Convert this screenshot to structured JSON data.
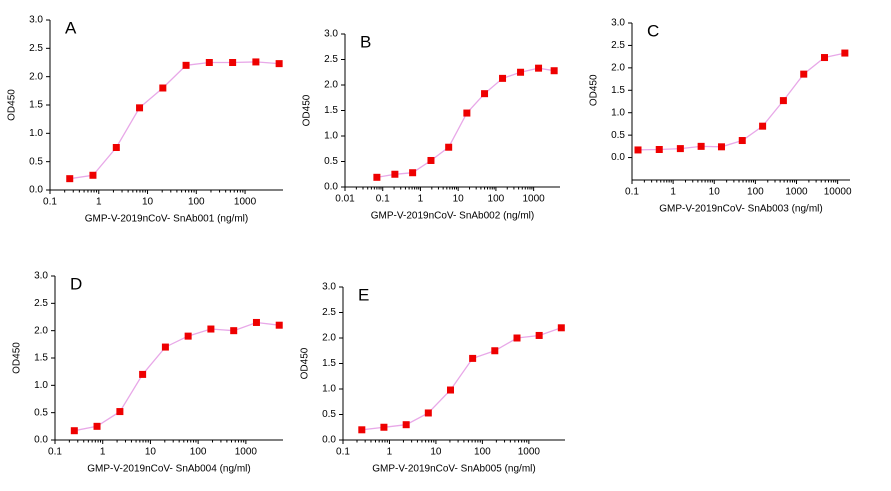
{
  "chart_data": [
    {
      "type": "line",
      "title": "A",
      "x_label": "GMP-V-2019nCoV- SnAb001 (ng/ml)",
      "y_label": "OD450",
      "log_x": true,
      "color": "#ee0000",
      "line_color": "#e8a8e8",
      "x": [
        0.254,
        0.76,
        2.29,
        6.86,
        20.6,
        61.7,
        185,
        556,
        1667,
        5000
      ],
      "values": [
        0.2,
        0.26,
        0.75,
        1.45,
        1.8,
        2.2,
        2.25,
        2.25,
        2.26,
        2.23
      ],
      "xlim": [
        0.1,
        6000
      ],
      "xticks": [
        0.1,
        1,
        10,
        100,
        1000
      ],
      "ylim": [
        0,
        3
      ],
      "yticks": [
        {
          "value": 0,
          "label": "0.0"
        },
        0.5,
        {
          "value": 1,
          "label": "1.0"
        },
        1.5,
        {
          "value": 2,
          "label": "2.0"
        },
        2.5,
        {
          "value": 3,
          "label": "3.0"
        }
      ]
    },
    {
      "type": "line",
      "title": "B",
      "x_label": "GMP-V-2019nCoV- SnAb002 (ng/ml)",
      "y_label": "OD450",
      "log_x": true,
      "color": "#ee0000",
      "line_color": "#e8a8e8",
      "x": [
        0.07,
        0.21,
        0.62,
        1.9,
        5.6,
        17,
        50,
        150,
        450,
        1350,
        3500
      ],
      "values": [
        0.19,
        0.25,
        0.28,
        0.52,
        0.78,
        1.45,
        1.83,
        2.13,
        2.25,
        2.33,
        2.28
      ],
      "xlim": [
        0.01,
        5000
      ],
      "xticks": [
        0.01,
        0.1,
        1,
        10,
        100,
        1000
      ],
      "ylim": [
        0,
        3
      ],
      "yticks": [
        {
          "value": 0,
          "label": "0.0"
        },
        0.5,
        {
          "value": 1,
          "label": "1.0"
        },
        1.5,
        {
          "value": 2,
          "label": "2.0"
        },
        2.5,
        {
          "value": 3,
          "label": "3.0"
        }
      ]
    },
    {
      "type": "line",
      "title": "C",
      "x_label": "GMP-V-2019nCoV- SnAb003 (ng/ml)",
      "y_label": "OD450",
      "log_x": true,
      "color": "#ee0000",
      "line_color": "#e8a8e8",
      "x": [
        0.14,
        0.46,
        1.5,
        4.8,
        15,
        48,
        150,
        480,
        1500,
        4800,
        15000
      ],
      "values": [
        0.17,
        0.18,
        0.2,
        0.25,
        0.24,
        0.38,
        0.7,
        1.27,
        1.86,
        2.23,
        2.33
      ],
      "xlim": [
        0.1,
        20000
      ],
      "xticks": [
        0.1,
        1,
        10,
        100,
        1000,
        10000
      ],
      "ylim": [
        -0.5,
        3
      ],
      "yticks": [
        {
          "value": 0,
          "label": "0.0"
        },
        0.5,
        {
          "value": 1,
          "label": "1.0"
        },
        1.5,
        {
          "value": 2,
          "label": "2.0"
        },
        2.5,
        {
          "value": 3,
          "label": "3.0"
        }
      ]
    },
    {
      "type": "line",
      "title": "D",
      "x_label": "GMP-V-2019nCoV- SnAb004 (ng/ml)",
      "y_label": "OD450",
      "log_x": true,
      "color": "#ee0000",
      "line_color": "#e8a8e8",
      "x": [
        0.254,
        0.76,
        2.29,
        6.86,
        20.6,
        61.7,
        185,
        556,
        1667,
        5000
      ],
      "values": [
        0.17,
        0.25,
        0.52,
        1.2,
        1.7,
        1.9,
        2.03,
        2.0,
        2.15,
        2.1
      ],
      "xlim": [
        0.1,
        6000
      ],
      "xticks": [
        0.1,
        1,
        10,
        100,
        1000
      ],
      "ylim": [
        0,
        3
      ],
      "yticks": [
        {
          "value": 0,
          "label": "0.0"
        },
        0.5,
        {
          "value": 1,
          "label": "1.0"
        },
        1.5,
        {
          "value": 2,
          "label": "2.0"
        },
        2.5,
        {
          "value": 3,
          "label": "3.0"
        }
      ]
    },
    {
      "type": "line",
      "title": "E",
      "x_label": "GMP-V-2019nCoV- SnAb005 (ng/ml)",
      "y_label": "OD450",
      "log_x": true,
      "color": "#ee0000",
      "line_color": "#e8a8e8",
      "x": [
        0.254,
        0.76,
        2.29,
        6.86,
        20.6,
        61.7,
        185,
        556,
        1667,
        5000
      ],
      "values": [
        0.2,
        0.25,
        0.3,
        0.53,
        0.98,
        1.6,
        1.75,
        2.0,
        2.05,
        2.2
      ],
      "xlim": [
        0.1,
        6000
      ],
      "xticks": [
        0.1,
        1,
        10,
        100,
        1000
      ],
      "ylim": [
        0,
        3
      ],
      "yticks": [
        {
          "value": 0,
          "label": "0.0"
        },
        0.5,
        {
          "value": 1,
          "label": "1.0"
        },
        1.5,
        {
          "value": 2,
          "label": "2.0"
        },
        2.5,
        {
          "value": 3,
          "label": "3.0"
        }
      ]
    }
  ]
}
